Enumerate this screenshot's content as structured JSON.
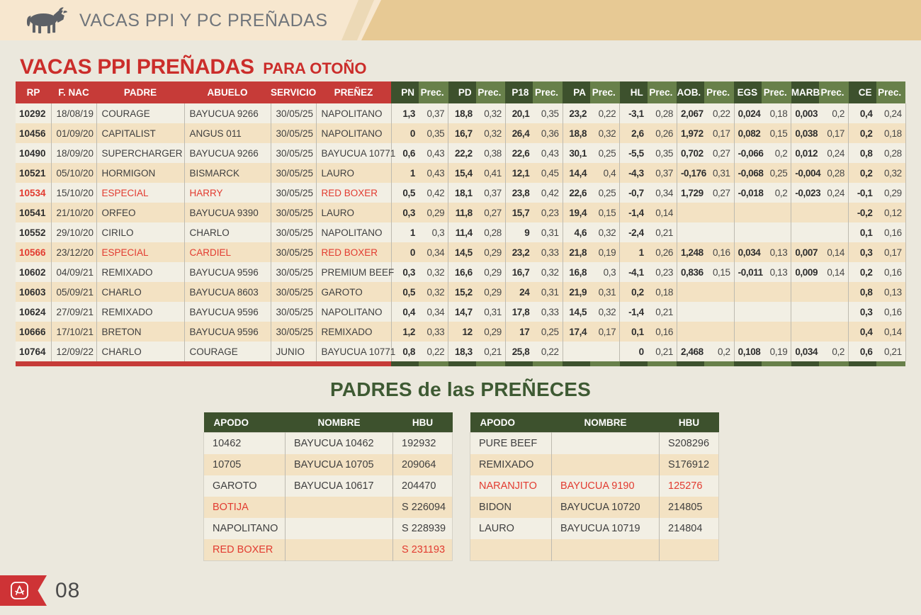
{
  "header": {
    "title": "VACAS PPI Y PC PREÑADAS",
    "icon": "cow-icon"
  },
  "main_table": {
    "title": "VACAS PPI PREÑADAS",
    "subtitle": "PARA OTOÑO",
    "col_labels": [
      "RP",
      "F. NAC",
      "PADRE",
      "ABUELO",
      "SERVICIO",
      "PREÑEZ",
      "PN",
      "Prec.",
      "PD",
      "Prec.",
      "P18",
      "Prec.",
      "PA",
      "Prec.",
      "HL",
      "Prec.",
      "AOB.",
      "Prec.",
      "EGS",
      "Prec.",
      "MARB",
      "Prec.",
      "CE",
      "Prec."
    ],
    "rows": [
      {
        "cells": [
          "10292",
          "18/08/19",
          "COURAGE",
          "BAYUCUA 9266",
          "30/05/25",
          "NAPOLITANO",
          "1,3",
          "0,37",
          "18,8",
          "0,32",
          "20,1",
          "0,35",
          "23,2",
          "0,22",
          "-3,1",
          "0,28",
          "2,067",
          "0,22",
          "0,024",
          "0,18",
          "0,003",
          "0,2",
          "0,4",
          "0,24"
        ],
        "red_cells": []
      },
      {
        "cells": [
          "10456",
          "01/09/20",
          "CAPITALIST",
          "ANGUS 011",
          "30/05/25",
          "NAPOLITANO",
          "0",
          "0,35",
          "16,7",
          "0,32",
          "26,4",
          "0,36",
          "18,8",
          "0,32",
          "2,6",
          "0,26",
          "1,972",
          "0,17",
          "0,082",
          "0,15",
          "0,038",
          "0,17",
          "0,2",
          "0,18"
        ],
        "red_cells": []
      },
      {
        "cells": [
          "10490",
          "18/09/20",
          "SUPERCHARGER",
          "BAYUCUA 9266",
          "30/05/25",
          "BAYUCUA 10771",
          "0,6",
          "0,43",
          "22,2",
          "0,38",
          "22,6",
          "0,43",
          "30,1",
          "0,25",
          "-5,5",
          "0,35",
          "0,702",
          "0,27",
          "-0,066",
          "0,2",
          "0,012",
          "0,24",
          "0,8",
          "0,28"
        ],
        "red_cells": []
      },
      {
        "cells": [
          "10521",
          "05/10/20",
          "HORMIGON",
          "BISMARCK",
          "30/05/25",
          "LAURO",
          "1",
          "0,43",
          "15,4",
          "0,41",
          "12,1",
          "0,45",
          "14,4",
          "0,4",
          "-4,3",
          "0,37",
          "-0,176",
          "0,31",
          "-0,068",
          "0,25",
          "-0,004",
          "0,28",
          "0,2",
          "0,32"
        ],
        "red_cells": []
      },
      {
        "cells": [
          "10534",
          "15/10/20",
          "ESPECIAL",
          "HARRY",
          "30/05/25",
          "RED BOXER",
          "0,5",
          "0,42",
          "18,1",
          "0,37",
          "23,8",
          "0,42",
          "22,6",
          "0,25",
          "-0,7",
          "0,34",
          "1,729",
          "0,27",
          "-0,018",
          "0,2",
          "-0,023",
          "0,24",
          "-0,1",
          "0,29"
        ],
        "red_cells": [
          0,
          2,
          3,
          5
        ]
      },
      {
        "cells": [
          "10541",
          "21/10/20",
          "ORFEO",
          "BAYUCUA 9390",
          "30/05/25",
          "LAURO",
          "0,3",
          "0,29",
          "11,8",
          "0,27",
          "15,7",
          "0,23",
          "19,4",
          "0,15",
          "-1,4",
          "0,14",
          "",
          "",
          "",
          "",
          "",
          "",
          "-0,2",
          "0,12"
        ],
        "red_cells": []
      },
      {
        "cells": [
          "10552",
          "29/10/20",
          "CIRILO",
          "CHARLO",
          "30/05/25",
          "NAPOLITANO",
          "1",
          "0,3",
          "11,4",
          "0,28",
          "9",
          "0,31",
          "4,6",
          "0,32",
          "-2,4",
          "0,21",
          "",
          "",
          "",
          "",
          "",
          "",
          "0,1",
          "0,16"
        ],
        "red_cells": []
      },
      {
        "cells": [
          "10566",
          "23/12/20",
          "ESPECIAL",
          "CARDIEL",
          "30/05/25",
          "RED BOXER",
          "0",
          "0,34",
          "14,5",
          "0,29",
          "23,2",
          "0,33",
          "21,8",
          "0,19",
          "1",
          "0,26",
          "1,248",
          "0,16",
          "0,034",
          "0,13",
          "0,007",
          "0,14",
          "0,3",
          "0,17"
        ],
        "red_cells": [
          0,
          2,
          3,
          5
        ]
      },
      {
        "cells": [
          "10602",
          "04/09/21",
          "REMIXADO",
          "BAYUCUA 9596",
          "30/05/25",
          "PREMIUM BEEF",
          "0,3",
          "0,32",
          "16,6",
          "0,29",
          "16,7",
          "0,32",
          "16,8",
          "0,3",
          "-4,1",
          "0,23",
          "0,836",
          "0,15",
          "-0,011",
          "0,13",
          "0,009",
          "0,14",
          "0,2",
          "0,16"
        ],
        "red_cells": []
      },
      {
        "cells": [
          "10603",
          "05/09/21",
          "CHARLO",
          "BAYUCUA 8603",
          "30/05/25",
          "GAROTO",
          "0,5",
          "0,32",
          "15,2",
          "0,29",
          "24",
          "0,31",
          "21,9",
          "0,31",
          "0,2",
          "0,18",
          "",
          "",
          "",
          "",
          "",
          "",
          "0,8",
          "0,13"
        ],
        "red_cells": []
      },
      {
        "cells": [
          "10624",
          "27/09/21",
          "REMIXADO",
          "BAYUCUA 9596",
          "30/05/25",
          "NAPOLITANO",
          "0,4",
          "0,34",
          "14,7",
          "0,31",
          "17,8",
          "0,33",
          "14,5",
          "0,32",
          "-1,4",
          "0,21",
          "",
          "",
          "",
          "",
          "",
          "",
          "0,3",
          "0,16"
        ],
        "red_cells": []
      },
      {
        "cells": [
          "10666",
          "17/10/21",
          "BRETON",
          "BAYUCUA 9596",
          "30/05/25",
          "REMIXADO",
          "1,2",
          "0,33",
          "12",
          "0,29",
          "17",
          "0,25",
          "17,4",
          "0,17",
          "0,1",
          "0,16",
          "",
          "",
          "",
          "",
          "",
          "",
          "0,4",
          "0,14"
        ],
        "red_cells": []
      },
      {
        "cells": [
          "10764",
          "12/09/22",
          "CHARLO",
          "COURAGE",
          "JUNIO",
          "BAYUCUA 10771",
          "0,8",
          "0,22",
          "18,3",
          "0,21",
          "25,8",
          "0,22",
          "",
          "",
          "0",
          "0,21",
          "2,468",
          "0,2",
          "0,108",
          "0,19",
          "0,034",
          "0,2",
          "0,6",
          "0,21"
        ],
        "red_cells": []
      }
    ]
  },
  "padres": {
    "title": "PADRES de las PREÑECES",
    "columns": [
      "APODO",
      "NOMBRE",
      "HBU"
    ],
    "left_rows": [
      {
        "cells": [
          "10462",
          "BAYUCUA 10462",
          "192932"
        ],
        "red_cells": []
      },
      {
        "cells": [
          "10705",
          "BAYUCUA 10705",
          "209064"
        ],
        "red_cells": []
      },
      {
        "cells": [
          "GAROTO",
          "BAYUCUA 10617",
          "204470"
        ],
        "red_cells": []
      },
      {
        "cells": [
          "BOTIJA",
          "",
          "S 226094"
        ],
        "red_cells": [
          0
        ]
      },
      {
        "cells": [
          "NAPOLITANO",
          "",
          "S 228939"
        ],
        "red_cells": []
      },
      {
        "cells": [
          "RED BOXER",
          "",
          "S 231193"
        ],
        "red_cells": [
          0,
          2
        ]
      }
    ],
    "right_rows": [
      {
        "cells": [
          "PURE BEEF",
          "",
          "S208296"
        ],
        "red_cells": []
      },
      {
        "cells": [
          "REMIXADO",
          "",
          "S176912"
        ],
        "red_cells": []
      },
      {
        "cells": [
          "NARANJITO",
          "BAYUCUA 9190",
          "125276"
        ],
        "red_cells": [
          0,
          1,
          2
        ]
      },
      {
        "cells": [
          "BIDON",
          "BAYUCUA 10720",
          "214805"
        ],
        "red_cells": []
      },
      {
        "cells": [
          "LAURO",
          "BAYUCUA 10719",
          "214804"
        ],
        "red_cells": []
      },
      {
        "cells": [
          "",
          "",
          ""
        ],
        "red_cells": []
      }
    ]
  },
  "footer": {
    "page_number": "08",
    "icon": "pdf-icon"
  },
  "colors": {
    "accent_red": "#c63b38",
    "title_red": "#cb2d2a",
    "row_red_text": "#e23b30",
    "dark_green": "#3d512d",
    "light_green": "#68804a",
    "title_green": "#3e5a33",
    "banner_light": "#f7e7cf",
    "banner_dark": "#e7c994",
    "row_beige": "#f3e2c3",
    "row_light": "#f2efe4",
    "page_bg": "#ebe8dd"
  }
}
